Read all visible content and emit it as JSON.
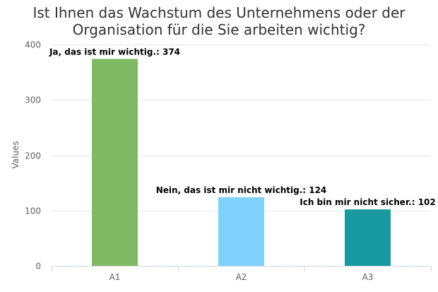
{
  "chart_data": {
    "type": "bar",
    "title_lines": [
      "Ist Ihnen das Wachstum des Unternehmens oder der",
      "Organisation für die Sie arbeiten wichtig?"
    ],
    "categories": [
      "A1",
      "A2",
      "A3"
    ],
    "values": [
      374,
      124,
      102
    ],
    "data_labels": [
      "Ja, das ist mir wichtig.: 374",
      "Nein, das ist mir nicht wichtig.: 124",
      "Ich bin mir nicht sicher.: 102"
    ],
    "bar_colors": [
      "#7fba62",
      "#7fd1fc",
      "#17999f"
    ],
    "xlabel": "",
    "ylabel": "Values",
    "ylim": [
      0,
      400
    ],
    "yticks": [
      0,
      100,
      200,
      300,
      400
    ],
    "grid": true,
    "legend": "none"
  }
}
